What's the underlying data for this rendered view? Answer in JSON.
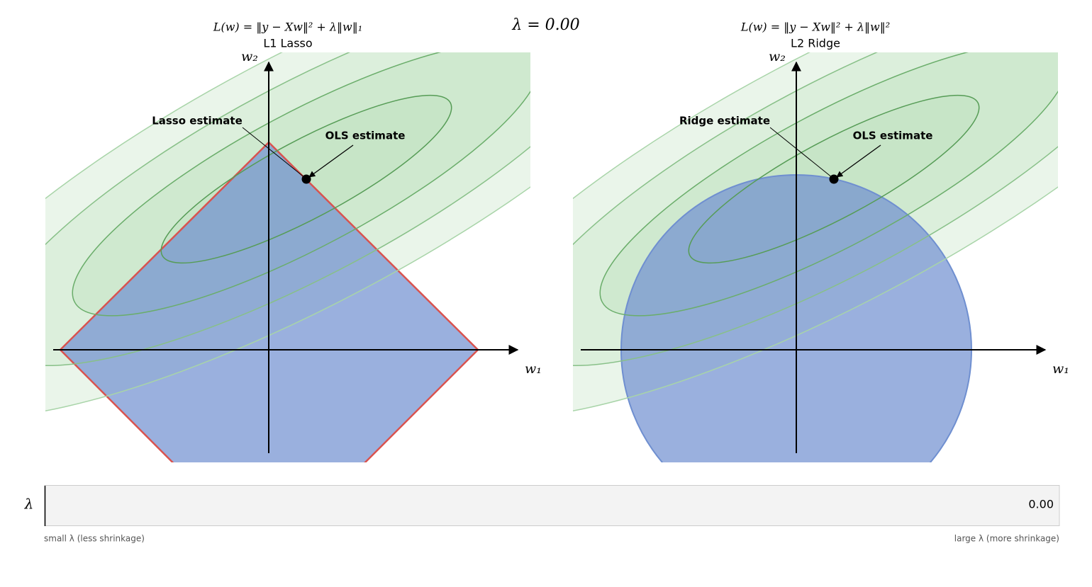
{
  "header": {
    "title": "λ = 0.00"
  },
  "panels": [
    {
      "formula": "L(w) = ‖y − Xw‖² + λ‖w‖₁",
      "title": "L1  Lasso",
      "x_label": "w₁",
      "y_label": "w₂",
      "estimate_label": "Lasso estimate",
      "ols_label": "OLS estimate"
    },
    {
      "formula": "L(w) = ‖y − Xw‖² + λ‖w‖²",
      "title": "L2  Ridge",
      "x_label": "w₁",
      "y_label": "w₂",
      "estimate_label": "Ridge estimate",
      "ols_label": "OLS estimate"
    }
  ],
  "slider": {
    "label": "λ",
    "value": "0.00",
    "min_caption": "small λ  (less shrinkage)",
    "max_caption": "large λ  (more shrinkage)"
  }
}
